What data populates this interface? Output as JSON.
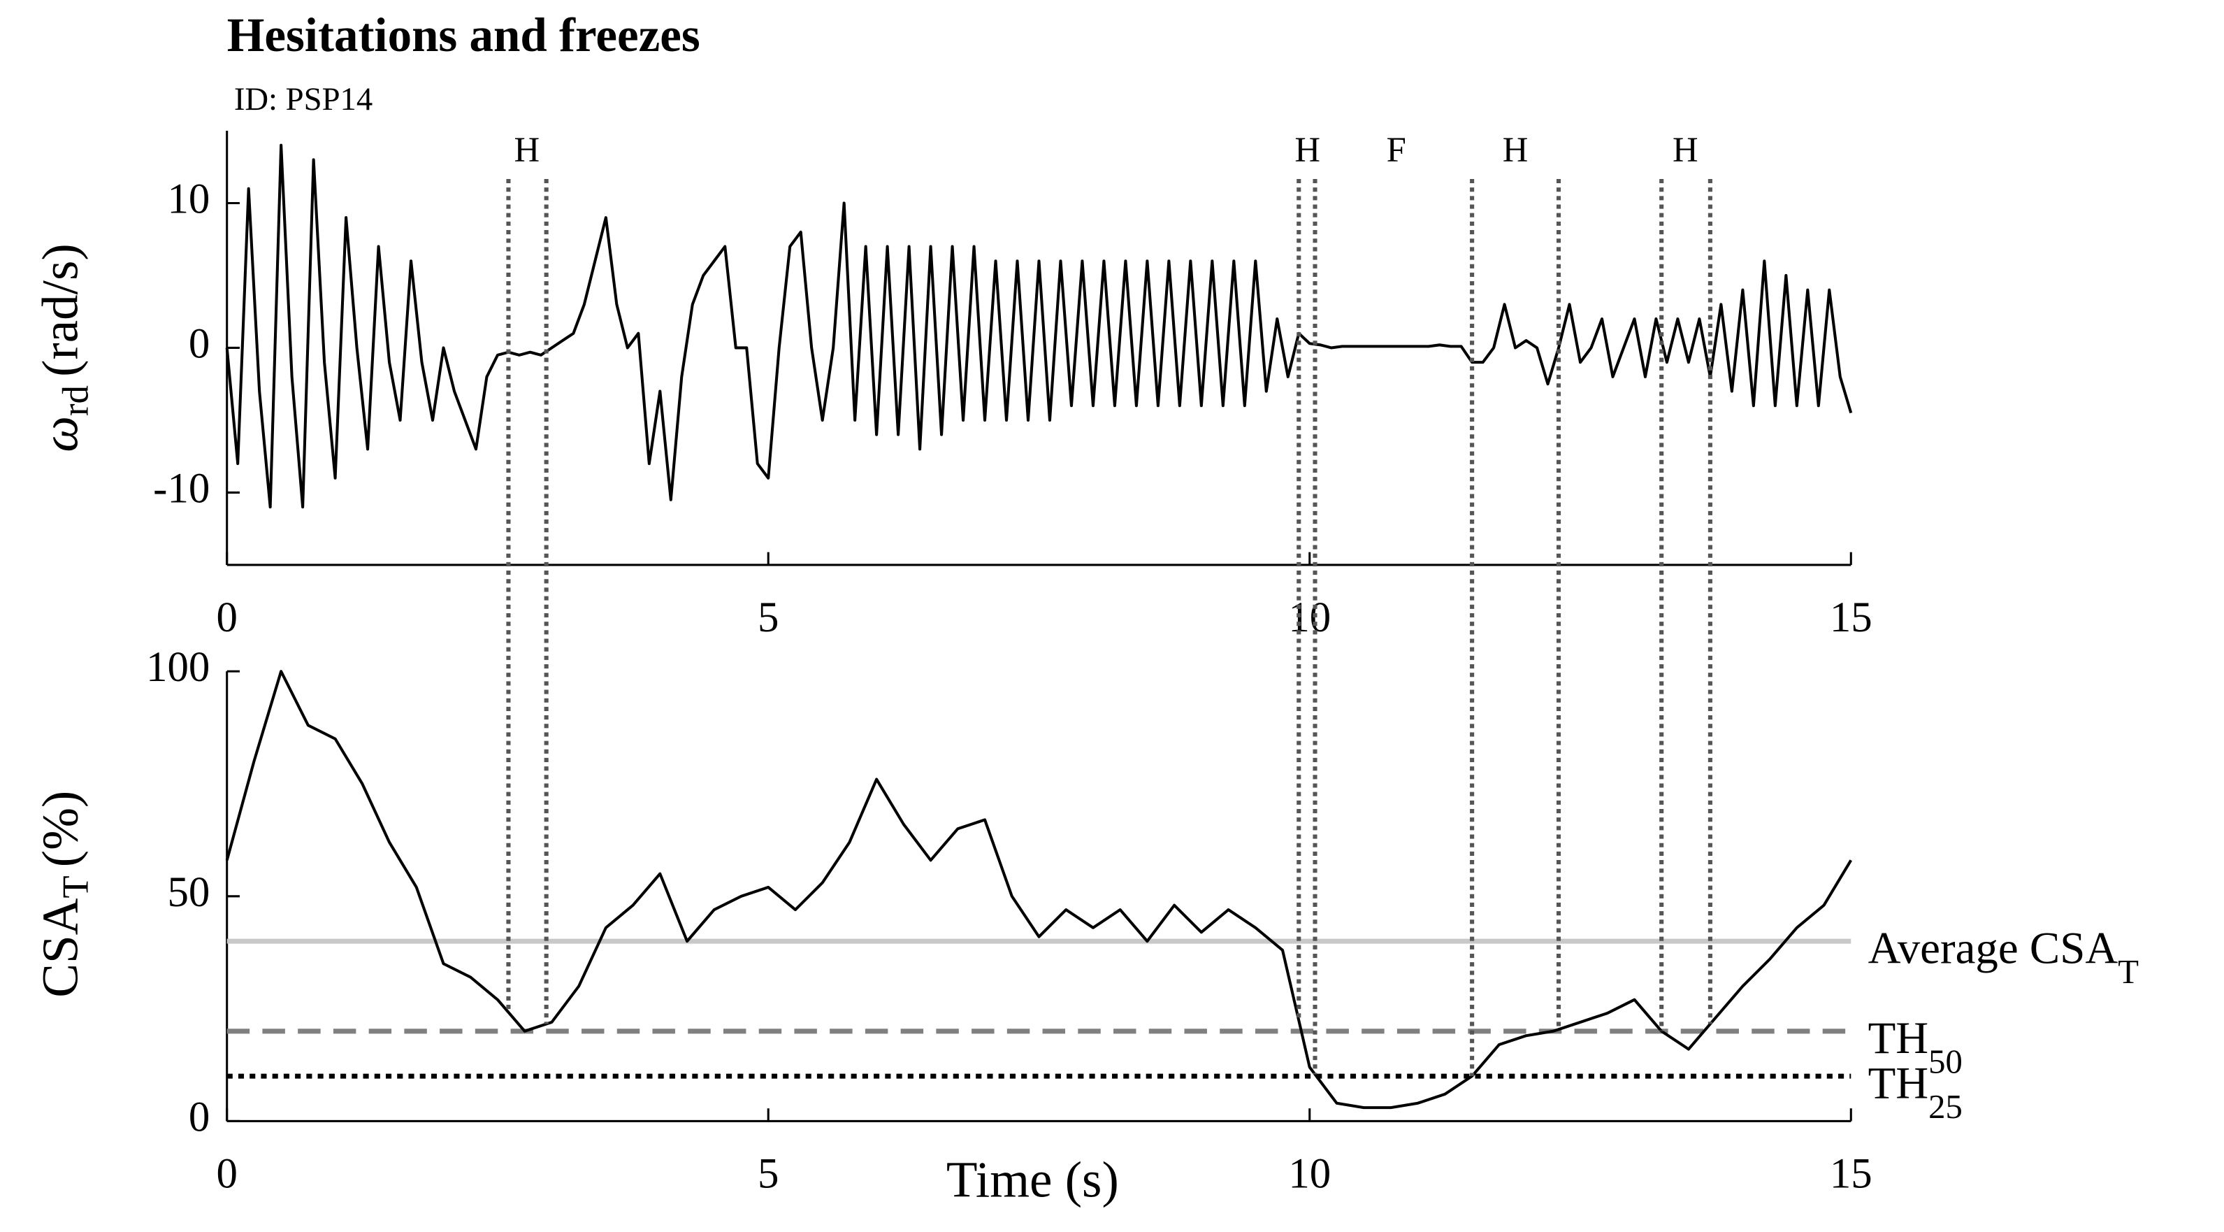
{
  "chart_data": [
    {
      "type": "line",
      "title": "Hesitations and freezes",
      "subtitle": "ID: PSP14",
      "ylabel": {
        "symbol": "ω",
        "sub": "rd",
        "unit": "(rad/s)"
      },
      "color": "#000000",
      "xlim": [
        0,
        15
      ],
      "xticks": [
        0,
        5,
        10,
        15
      ],
      "ylim": [
        -15,
        15
      ],
      "yticks": [
        -10,
        0,
        10
      ],
      "event_lines": [
        2.6,
        2.95,
        9.9,
        10.05,
        11.5,
        12.3,
        13.25,
        13.7
      ],
      "event_labels": [
        {
          "x": 2.77,
          "label": "H"
        },
        {
          "x": 9.98,
          "label": "H"
        },
        {
          "x": 10.8,
          "label": "F"
        },
        {
          "x": 11.9,
          "label": "H"
        },
        {
          "x": 13.47,
          "label": "H"
        }
      ],
      "x": [
        0,
        0.1,
        0.2,
        0.3,
        0.4,
        0.5,
        0.6,
        0.7,
        0.8,
        0.9,
        1,
        1.1,
        1.2,
        1.3,
        1.4,
        1.5,
        1.6,
        1.7,
        1.8,
        1.9,
        2,
        2.1,
        2.2,
        2.3,
        2.4,
        2.5,
        2.6,
        2.7,
        2.8,
        2.9,
        3,
        3.1,
        3.2,
        3.3,
        3.4,
        3.5,
        3.6,
        3.7,
        3.8,
        3.9,
        4,
        4.1,
        4.2,
        4.3,
        4.4,
        4.5,
        4.6,
        4.7,
        4.8,
        4.9,
        5,
        5.1,
        5.2,
        5.3,
        5.4,
        5.5,
        5.6,
        5.7,
        5.8,
        5.9,
        6,
        6.1,
        6.2,
        6.3,
        6.4,
        6.5,
        6.6,
        6.7,
        6.8,
        6.9,
        7,
        7.1,
        7.2,
        7.3,
        7.4,
        7.5,
        7.6,
        7.7,
        7.8,
        7.9,
        8,
        8.1,
        8.2,
        8.3,
        8.4,
        8.5,
        8.6,
        8.7,
        8.8,
        8.9,
        9,
        9.1,
        9.2,
        9.3,
        9.4,
        9.5,
        9.6,
        9.7,
        9.8,
        9.9,
        10,
        10.1,
        10.2,
        10.3,
        10.4,
        10.5,
        10.6,
        10.7,
        10.8,
        10.9,
        11,
        11.1,
        11.2,
        11.3,
        11.4,
        11.5,
        11.6,
        11.7,
        11.8,
        11.9,
        12,
        12.1,
        12.2,
        12.3,
        12.4,
        12.5,
        12.6,
        12.7,
        12.8,
        12.9,
        13,
        13.1,
        13.2,
        13.3,
        13.4,
        13.5,
        13.6,
        13.7,
        13.8,
        13.9,
        14,
        14.1,
        14.2,
        14.3,
        14.4,
        14.5,
        14.6,
        14.7,
        14.8,
        14.9,
        15
      ],
      "values": [
        0,
        -8,
        11,
        -3,
        -11,
        14,
        -2,
        -11,
        13,
        -1,
        -9,
        9,
        0,
        -7,
        7,
        -1,
        -5,
        6,
        -1,
        -5,
        0,
        -3,
        -5,
        -7,
        -2,
        -0.5,
        -0.3,
        -0.5,
        -0.3,
        -0.5,
        0,
        0.5,
        1,
        3,
        6,
        9,
        3,
        0,
        1,
        -8,
        -3,
        -10.5,
        -2,
        3,
        5,
        6,
        7,
        0,
        0,
        -8,
        -9,
        0,
        7,
        8,
        0,
        -5,
        0,
        10,
        -5,
        7,
        -6,
        7,
        -6,
        7,
        -7,
        7,
        -6,
        7,
        -5,
        7,
        -5,
        6,
        -5,
        6,
        -5,
        6,
        -5,
        6,
        -4,
        6,
        -4,
        6,
        -4,
        6,
        -4,
        6,
        -4,
        6,
        -4,
        6,
        -4,
        6,
        -4,
        6,
        -4,
        6,
        -3,
        2,
        -2,
        1,
        0.3,
        0.2,
        0,
        0.1,
        0.1,
        0.1,
        0.1,
        0.1,
        0.1,
        0.1,
        0.1,
        0.1,
        0.2,
        0.1,
        0.1,
        -1,
        -1,
        0,
        3,
        0,
        0.5,
        0,
        -2.5,
        0,
        3,
        -1,
        0,
        2,
        -2,
        0,
        2,
        -2,
        2,
        -1,
        2,
        -1,
        2,
        -2,
        3,
        -3,
        4,
        -4,
        6,
        -4,
        5,
        -4,
        4,
        -4,
        4,
        -2,
        -4.5
      ]
    },
    {
      "type": "line",
      "ylabel": {
        "symbol": "CSA",
        "sub": "T",
        "unit": "(%)"
      },
      "xlabel": "Time (s)",
      "color": "#000000",
      "xlim": [
        0,
        15
      ],
      "xticks": [
        0,
        5,
        10,
        15
      ],
      "ylim": [
        0,
        100
      ],
      "yticks": [
        0,
        50,
        100
      ],
      "reference_lines": [
        {
          "value": 40,
          "label": "Average CSA",
          "sub": "T",
          "color": "#c8c8c8",
          "style": "solid"
        },
        {
          "value": 20,
          "label": "TH",
          "sub": "50",
          "color": "#808080",
          "style": "dashed"
        },
        {
          "value": 10,
          "label": "TH",
          "sub": "25",
          "color": "#000000",
          "style": "dotted"
        }
      ],
      "x": [
        0,
        0.25,
        0.5,
        0.75,
        1,
        1.25,
        1.5,
        1.75,
        2,
        2.25,
        2.5,
        2.75,
        3,
        3.25,
        3.5,
        3.75,
        4,
        4.25,
        4.5,
        4.75,
        5,
        5.25,
        5.5,
        5.75,
        6,
        6.25,
        6.5,
        6.75,
        7,
        7.25,
        7.5,
        7.75,
        8,
        8.25,
        8.5,
        8.75,
        9,
        9.25,
        9.5,
        9.75,
        10,
        10.25,
        10.5,
        10.75,
        11,
        11.25,
        11.5,
        11.75,
        12,
        12.25,
        12.5,
        12.75,
        13,
        13.25,
        13.5,
        13.75,
        14,
        14.25,
        14.5,
        14.75,
        15
      ],
      "values": [
        58,
        80,
        100,
        88,
        85,
        75,
        62,
        52,
        35,
        32,
        27,
        20,
        22,
        30,
        43,
        48,
        55,
        40,
        47,
        50,
        52,
        47,
        53,
        62,
        76,
        66,
        58,
        65,
        67,
        50,
        41,
        47,
        43,
        47,
        40,
        48,
        42,
        47,
        43,
        38,
        12,
        4,
        3,
        3,
        4,
        6,
        10,
        17,
        19,
        20,
        22,
        24,
        27,
        20,
        16,
        23,
        30,
        36,
        43,
        48,
        58
      ]
    }
  ]
}
